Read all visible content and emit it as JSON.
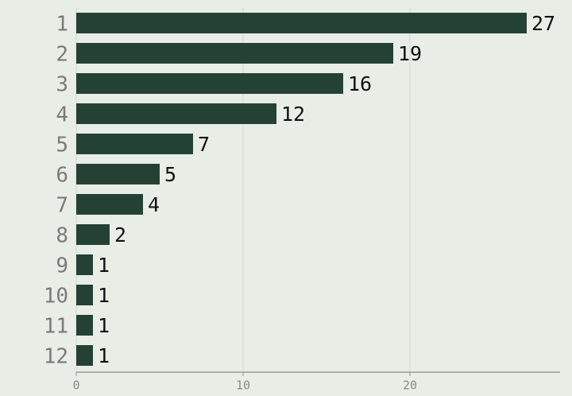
{
  "chart_data": {
    "type": "bar",
    "orientation": "horizontal",
    "categories": [
      "1",
      "2",
      "3",
      "4",
      "5",
      "6",
      "7",
      "8",
      "9",
      "10",
      "11",
      "12"
    ],
    "values": [
      27,
      19,
      16,
      12,
      7,
      5,
      4,
      2,
      1,
      1,
      1,
      1
    ],
    "color": "#234234",
    "xlim": [
      0,
      29
    ],
    "xticks": [
      0,
      10,
      20
    ],
    "grid": true
  }
}
